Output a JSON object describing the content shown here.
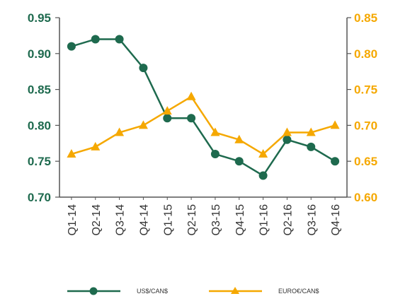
{
  "chart_data": {
    "type": "line",
    "categories": [
      "Q1-14",
      "Q2-14",
      "Q3-14",
      "Q4-14",
      "Q1-15",
      "Q2-15",
      "Q3-15",
      "Q4-15",
      "Q1-16",
      "Q2-16",
      "Q3-16",
      "Q4-16"
    ],
    "series": [
      {
        "name": "US$/CAN$",
        "axis": "left",
        "color": "#1e6a4e",
        "marker": "circle",
        "values": [
          0.91,
          0.92,
          0.92,
          0.88,
          0.81,
          0.81,
          0.76,
          0.75,
          0.73,
          0.78,
          0.77,
          0.75
        ]
      },
      {
        "name": "EURO€/CAN$",
        "axis": "right",
        "color": "#f5a800",
        "marker": "triangle",
        "values": [
          0.66,
          0.67,
          0.69,
          0.7,
          0.72,
          0.74,
          0.69,
          0.68,
          0.66,
          0.69,
          0.69,
          0.7
        ]
      }
    ],
    "y_left": {
      "min": 0.7,
      "max": 0.95,
      "ticks": [
        "0.70",
        "0.75",
        "0.80",
        "0.85",
        "0.90",
        "0.95"
      ]
    },
    "y_right": {
      "min": 0.6,
      "max": 0.85,
      "ticks": [
        "0.60",
        "0.65",
        "0.70",
        "0.75",
        "0.80",
        "0.85"
      ]
    },
    "grid": false,
    "legend_position": "bottom"
  }
}
